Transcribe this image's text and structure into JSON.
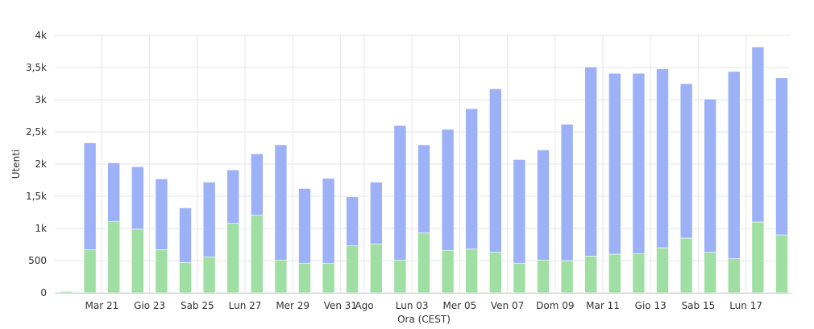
{
  "chart_data": {
    "type": "bar",
    "stacked": true,
    "xlabel": "Ora (CEST)",
    "ylabel": "Utenti",
    "ylim": [
      0,
      4000
    ],
    "y_ticks": [
      {
        "value": 0,
        "label": "0"
      },
      {
        "value": 500,
        "label": "500"
      },
      {
        "value": 1000,
        "label": "1k"
      },
      {
        "value": 1500,
        "label": "1,5k"
      },
      {
        "value": 2000,
        "label": "2k"
      },
      {
        "value": 2500,
        "label": "2,5k"
      },
      {
        "value": 3000,
        "label": "3k"
      },
      {
        "value": 3500,
        "label": "3,5k"
      },
      {
        "value": 4000,
        "label": "4k"
      }
    ],
    "x_tick_labels": [
      {
        "index": 2,
        "label": "Mar 21"
      },
      {
        "index": 4,
        "label": "Gio 23"
      },
      {
        "index": 6,
        "label": "Sab 25"
      },
      {
        "index": 8,
        "label": "Lun 27"
      },
      {
        "index": 10,
        "label": "Mer 29"
      },
      {
        "index": 12,
        "label": "Ven 31"
      },
      {
        "index": 13,
        "label": "Ago"
      },
      {
        "index": 15,
        "label": "Lun 03"
      },
      {
        "index": 17,
        "label": "Mer 05"
      },
      {
        "index": 19,
        "label": "Ven 07"
      },
      {
        "index": 21,
        "label": "Dom 09"
      },
      {
        "index": 23,
        "label": "Mar 11"
      },
      {
        "index": 25,
        "label": "Gio 13"
      },
      {
        "index": 27,
        "label": "Sab 15"
      },
      {
        "index": 29,
        "label": "Lun 17"
      }
    ],
    "grid": true,
    "series": [
      {
        "color": "#a0dfa4",
        "values": [
          20,
          670,
          1110,
          990,
          670,
          470,
          560,
          1080,
          1210,
          510,
          460,
          460,
          730,
          760,
          510,
          930,
          660,
          680,
          630,
          460,
          510,
          500,
          570,
          600,
          610,
          700,
          850,
          630,
          530,
          1100,
          900
        ]
      },
      {
        "color": "#9db1f7",
        "values": [
          0,
          1660,
          910,
          970,
          1100,
          850,
          1160,
          830,
          950,
          1790,
          1160,
          1320,
          760,
          960,
          2090,
          1370,
          1880,
          2180,
          2540,
          1610,
          1710,
          2120,
          2940,
          2810,
          2800,
          2780,
          2400,
          2380,
          2910,
          2720,
          2440
        ]
      }
    ]
  }
}
